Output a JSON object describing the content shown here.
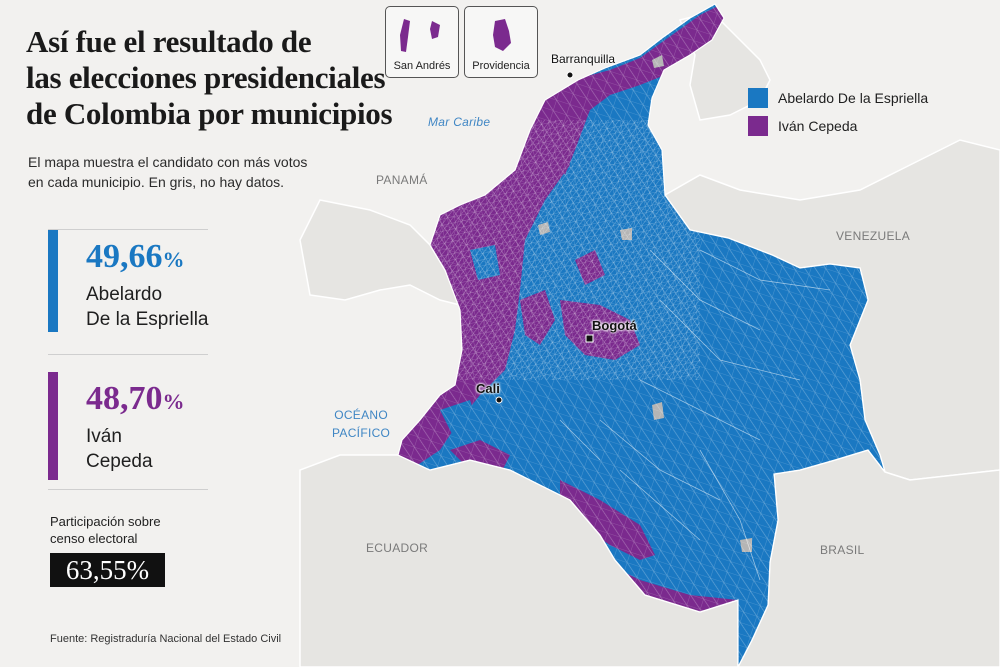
{
  "title_lines": [
    "Así fue el resultado de",
    "las elecciones presidenciales",
    "de Colombia por municipios"
  ],
  "subtitle_lines": [
    "El mapa muestra el candidato con más votos",
    "en cada municipio. En gris, no hay datos."
  ],
  "colors": {
    "blue": "#1a78c2",
    "purple": "#7b2a8e",
    "gray": "#b5b5b5",
    "land": "#e6e5e2",
    "sea": "#f2f1ef"
  },
  "results": [
    {
      "pct": "49,66",
      "unit": "%",
      "name_lines": [
        "Abelardo",
        "De la Espriella"
      ],
      "color": "#1a78c2"
    },
    {
      "pct": "48,70",
      "unit": "%",
      "name_lines": [
        "Iván",
        "Cepeda"
      ],
      "color": "#7b2a8e"
    }
  ],
  "participation": {
    "label_lines": [
      "Participación sobre",
      "censo electoral"
    ],
    "value": "63,55%"
  },
  "source": "Fuente: Registraduría Nacional del Estado Civil",
  "legend": [
    {
      "label": "Abelardo De la Espriella",
      "color": "#1a78c2"
    },
    {
      "label": "Iván Cepeda",
      "color": "#7b2a8e"
    }
  ],
  "insets": [
    "San Andrés",
    "Providencia"
  ],
  "map_labels": {
    "sea": "Mar Caribe",
    "ocean_lines": [
      "OCÉANO",
      "PACÍFICO"
    ],
    "countries": {
      "panama": "PANAMÁ",
      "venezuela": "VENEZUELA",
      "ecuador": "ECUADOR",
      "brasil": "BRASIL"
    }
  },
  "cities": {
    "barranquilla": "Barranquilla",
    "bogota": "Bogotá",
    "cali": "Cali"
  }
}
